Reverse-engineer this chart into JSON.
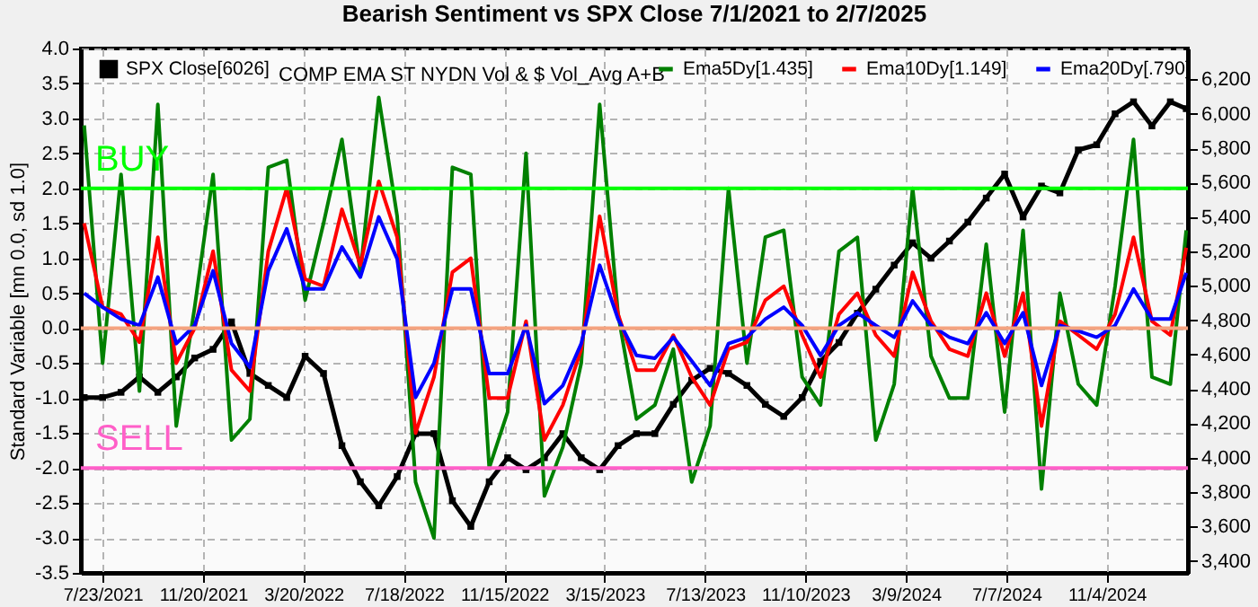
{
  "chart_data": {
    "type": "line",
    "title": "Bearish Sentiment vs SPX Close 7/1/2021 to 2/7/2025",
    "ylabel": "Standard Variable [mn 0.0, sd 1.0]",
    "annotations": [
      "COMP EMA ST NYDN Vol & $ Vol_Avg A+B"
    ],
    "x": [
      "2021-07-01",
      "2021-07-23",
      "2021-08-14",
      "2021-09-05",
      "2021-09-27",
      "2021-10-19",
      "2021-11-10",
      "2021-12-02",
      "2021-12-24",
      "2022-01-15",
      "2022-02-06",
      "2022-02-28",
      "2022-03-22",
      "2022-04-13",
      "2022-05-05",
      "2022-05-27",
      "2022-06-18",
      "2022-07-10",
      "2022-08-01",
      "2022-08-23",
      "2022-09-14",
      "2022-10-06",
      "2022-10-28",
      "2022-11-19",
      "2022-12-11",
      "2023-01-02",
      "2023-01-24",
      "2023-02-15",
      "2023-03-09",
      "2023-03-31",
      "2023-04-22",
      "2023-05-14",
      "2023-06-05",
      "2023-06-27",
      "2023-07-19",
      "2023-08-10",
      "2023-09-01",
      "2023-09-23",
      "2023-10-15",
      "2023-11-06",
      "2023-11-28",
      "2023-12-20",
      "2024-01-11",
      "2024-02-02",
      "2024-02-24",
      "2024-03-17",
      "2024-04-08",
      "2024-04-30",
      "2024-05-22",
      "2024-06-13",
      "2024-07-05",
      "2024-07-27",
      "2024-08-18",
      "2024-09-09",
      "2024-10-01",
      "2024-10-23",
      "2024-11-14",
      "2024-12-06",
      "2024-12-28",
      "2025-01-19",
      "2025-02-07"
    ],
    "series": [
      {
        "name": "SPX Close[6026]",
        "color": "#000000",
        "axis": "y2",
        "marker": "square",
        "values": [
          4350,
          4350,
          4380,
          4470,
          4380,
          4470,
          4580,
          4630,
          4790,
          4490,
          4420,
          4350,
          4590,
          4490,
          4070,
          3860,
          3720,
          3890,
          4140,
          4140,
          3750,
          3600,
          3860,
          4000,
          3930,
          4000,
          4140,
          4000,
          3930,
          4070,
          4140,
          4140,
          4310,
          4450,
          4520,
          4490,
          4420,
          4310,
          4240,
          4350,
          4560,
          4670,
          4840,
          4980,
          5120,
          5250,
          5160,
          5260,
          5370,
          5510,
          5650,
          5400,
          5580,
          5540,
          5790,
          5820,
          6000,
          6070,
          5930,
          6070,
          6030
        ]
      },
      {
        "name": "Ema5Dy[1.435]",
        "color": "#008000",
        "values": [
          2.9,
          -0.5,
          2.2,
          -0.9,
          3.2,
          -1.4,
          0.3,
          2.2,
          -1.6,
          -1.3,
          2.3,
          2.4,
          0.4,
          1.5,
          2.7,
          0.8,
          3.3,
          1.6,
          -2.2,
          -3.0,
          2.3,
          2.2,
          -2.0,
          -1.2,
          2.5,
          -2.4,
          -1.7,
          -0.5,
          3.2,
          0.2,
          -1.3,
          -1.1,
          -0.3,
          -2.2,
          -1.4,
          2.0,
          -0.5,
          1.3,
          1.4,
          -0.7,
          -1.1,
          1.1,
          1.3,
          -1.6,
          -0.8,
          2.0,
          -0.4,
          -1.0,
          -1.0,
          1.2,
          -1.2,
          1.4,
          -2.3,
          0.5,
          -0.8,
          -1.1,
          0.6,
          2.7,
          -0.7,
          -0.8,
          1.4
        ]
      },
      {
        "name": "Ema10Dy[1.149]",
        "color": "#ff0000",
        "values": [
          1.5,
          0.3,
          0.2,
          -0.2,
          1.3,
          -0.5,
          0.0,
          1.1,
          -0.6,
          -0.9,
          1.1,
          2.0,
          0.7,
          0.6,
          1.7,
          0.9,
          2.1,
          1.3,
          -1.5,
          -0.7,
          0.8,
          1.0,
          -1.0,
          -1.0,
          0.1,
          -1.6,
          -1.1,
          -0.3,
          1.6,
          0.2,
          -0.6,
          -0.6,
          -0.1,
          -0.7,
          -1.1,
          -0.3,
          -0.2,
          0.4,
          0.6,
          -0.1,
          -0.7,
          0.2,
          0.5,
          -0.1,
          -0.4,
          0.8,
          0.1,
          -0.3,
          -0.4,
          0.5,
          -0.4,
          0.5,
          -1.4,
          0.1,
          -0.1,
          -0.3,
          0.2,
          1.3,
          0.1,
          -0.1,
          1.15
        ]
      },
      {
        "name": "Ema20Dy[.790]",
        "color": "#0000ff",
        "values": [
          0.5,
          0.3,
          0.13,
          0.04,
          0.73,
          -0.22,
          0.04,
          0.82,
          -0.22,
          -0.56,
          0.82,
          1.42,
          0.56,
          0.56,
          1.16,
          0.73,
          1.59,
          0.99,
          -0.99,
          -0.5,
          0.56,
          0.56,
          -0.65,
          -0.65,
          0.04,
          -1.08,
          -0.82,
          -0.22,
          0.9,
          0.13,
          -0.39,
          -0.43,
          -0.13,
          -0.47,
          -0.82,
          -0.22,
          -0.13,
          0.13,
          0.3,
          0.04,
          -0.39,
          0.04,
          0.22,
          0.04,
          -0.13,
          0.39,
          0.04,
          -0.13,
          -0.22,
          0.22,
          -0.22,
          0.22,
          -0.82,
          0.04,
          -0.04,
          -0.13,
          0.04,
          0.56,
          0.13,
          0.13,
          0.79
        ]
      }
    ],
    "xlim": [
      "2021-06-27",
      "2025-02-09"
    ],
    "xticks": [
      {
        "value": "2021-07-23",
        "label": "7/23/2021"
      },
      {
        "value": "2021-11-20",
        "label": "11/20/2021"
      },
      {
        "value": "2022-03-20",
        "label": "3/20/2022"
      },
      {
        "value": "2022-07-18",
        "label": "7/18/2022"
      },
      {
        "value": "2022-11-15",
        "label": "11/15/2022"
      },
      {
        "value": "2023-03-15",
        "label": "3/15/2023"
      },
      {
        "value": "2023-07-13",
        "label": "7/13/2023"
      },
      {
        "value": "2023-11-10",
        "label": "11/10/2023"
      },
      {
        "value": "2024-03-09",
        "label": "3/9/2024"
      },
      {
        "value": "2024-07-07",
        "label": "7/7/2024"
      },
      {
        "value": "2024-11-04",
        "label": "11/4/2024"
      }
    ],
    "ylim": [
      -3.5,
      4.0
    ],
    "yticks": [
      {
        "value": -3.5,
        "label": "-3.5"
      },
      {
        "value": -3,
        "label": "-3.0"
      },
      {
        "value": -2.5,
        "label": "-2.5"
      },
      {
        "value": -2,
        "label": "-2.0"
      },
      {
        "value": -1.5,
        "label": "-1.5"
      },
      {
        "value": -1,
        "label": "-1.0"
      },
      {
        "value": -0.5,
        "label": "-0.5"
      },
      {
        "value": 0,
        "label": "0.0"
      },
      {
        "value": 0.5,
        "label": "0.5"
      },
      {
        "value": 1,
        "label": "1.0"
      },
      {
        "value": 1.5,
        "label": "1.5"
      },
      {
        "value": 2,
        "label": "2.0"
      },
      {
        "value": 2.5,
        "label": "2.5"
      },
      {
        "value": 3,
        "label": "3.0"
      },
      {
        "value": 3.5,
        "label": "3.5"
      },
      {
        "value": 4,
        "label": "4.0"
      }
    ],
    "y2lim": [
      3330,
      6380
    ],
    "y2ticks": [
      {
        "value": 3400,
        "label": "3,400"
      },
      {
        "value": 3600,
        "label": "3,600"
      },
      {
        "value": 3800,
        "label": "3,800"
      },
      {
        "value": 4000,
        "label": "4,000"
      },
      {
        "value": 4200,
        "label": "4,200"
      },
      {
        "value": 4400,
        "label": "4,400"
      },
      {
        "value": 4600,
        "label": "4,600"
      },
      {
        "value": 4800,
        "label": "4,800"
      },
      {
        "value": 5000,
        "label": "5,000"
      },
      {
        "value": 5200,
        "label": "5,200"
      },
      {
        "value": 5400,
        "label": "5,400"
      },
      {
        "value": 5600,
        "label": "5,600"
      },
      {
        "value": 5800,
        "label": "5,800"
      },
      {
        "value": 6000,
        "label": "6,000"
      },
      {
        "value": 6200,
        "label": "6,200"
      }
    ],
    "ref_lines": [
      {
        "axis": "y",
        "value": 2,
        "label": "BUY",
        "color": "#00ff00"
      },
      {
        "axis": "y",
        "value": -2,
        "label": "SELL",
        "color": "#ff5fc8"
      },
      {
        "axis": "y",
        "value": 0,
        "label": null,
        "color": "#f4a37f"
      }
    ],
    "grid": true,
    "legend": "top"
  }
}
